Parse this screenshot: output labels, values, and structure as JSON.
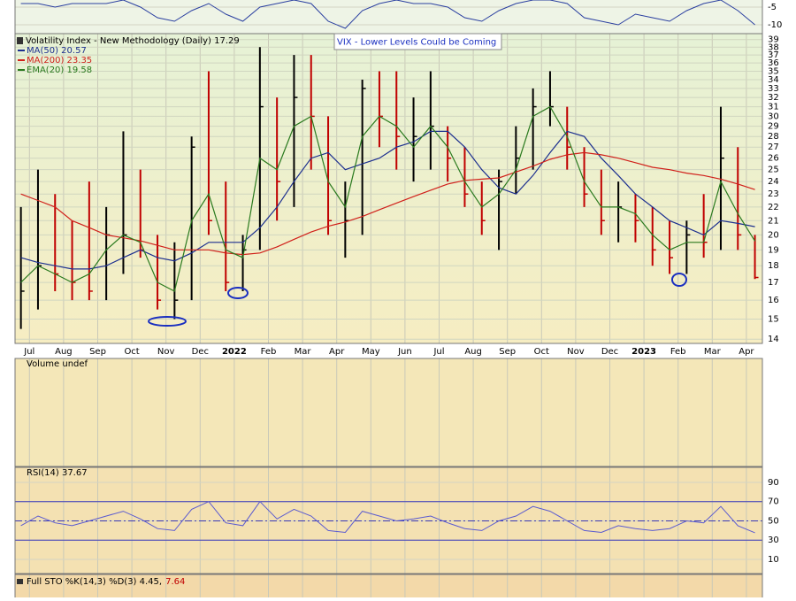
{
  "chart_data": [
    {
      "type": "line",
      "ylim": [
        -12.5,
        -3
      ],
      "yticks": [
        -5,
        -10
      ],
      "series": [
        {
          "color": "#2a3fa0",
          "values": [
            -4,
            -4,
            -5,
            -4,
            -4,
            -4,
            -3,
            -5,
            -8,
            -9,
            -6,
            -4,
            -7,
            -9,
            -5,
            -4,
            -3,
            -4,
            -9,
            -11,
            -6,
            -4,
            -3,
            -4,
            -4,
            -5,
            -8,
            -9,
            -6,
            -4,
            -3,
            -3,
            -4,
            -8,
            -9,
            -10,
            -7,
            -8,
            -9,
            -6,
            -4,
            -3,
            -6,
            -10
          ]
        }
      ]
    },
    {
      "type": "hlc",
      "title": "Volatility Index - New Methodology (Daily) 17.29",
      "log_scale": true,
      "grid": true,
      "ylim": [
        13.8,
        39.8
      ],
      "yticks": [
        14,
        15,
        16,
        17,
        18,
        19,
        20,
        21,
        22,
        23,
        24,
        25,
        26,
        27,
        28,
        29,
        30,
        31,
        32,
        33,
        34,
        35,
        36,
        37,
        38,
        39
      ],
      "annotation": "VIX - Lower Levels Could be Coming",
      "categories": [
        null,
        "Jul",
        null,
        "Aug",
        null,
        "Sep",
        null,
        "Oct",
        null,
        "Nov",
        null,
        "Dec",
        null,
        "2022",
        null,
        "Feb",
        null,
        "Mar",
        null,
        "Apr",
        null,
        "May",
        null,
        "Jun",
        null,
        "Jul",
        null,
        "Aug",
        null,
        "Sep",
        null,
        "Oct",
        null,
        "Nov",
        null,
        "Dec",
        null,
        "2023",
        null,
        "Feb",
        null,
        "Mar",
        null,
        "Apr"
      ],
      "high": [
        22,
        25,
        23,
        21,
        24,
        22,
        28.5,
        25,
        20,
        19.5,
        28,
        35,
        24,
        20,
        38,
        32,
        37,
        37,
        30,
        24,
        34,
        35,
        35,
        32,
        35,
        29,
        27,
        24,
        25,
        29,
        33,
        35,
        31,
        27,
        25,
        24,
        23,
        22,
        21,
        21,
        23,
        31,
        27,
        20
      ],
      "low": [
        14.5,
        15.5,
        16.5,
        16,
        16,
        16,
        17.5,
        18.5,
        15.5,
        15,
        16,
        20,
        16.5,
        16.5,
        19,
        21,
        22,
        25,
        20,
        18.5,
        20,
        27,
        25,
        24,
        25,
        24,
        22,
        20,
        19,
        23,
        25,
        29,
        25,
        22,
        20,
        19.5,
        19.5,
        18,
        17.5,
        17.5,
        18.5,
        19,
        19,
        17.2
      ],
      "close": [
        16.5,
        18,
        17.5,
        17,
        16.5,
        20,
        20,
        19,
        16,
        16,
        27,
        21,
        17,
        19,
        31,
        24,
        32,
        30,
        21,
        21,
        33,
        30,
        28,
        28,
        29,
        26,
        23,
        21,
        24,
        26,
        31,
        31,
        27,
        23,
        21,
        22,
        21,
        19,
        18.5,
        20,
        19.5,
        26,
        20,
        17.29
      ],
      "up_color": "#000000",
      "down_color": "#c00000",
      "series": [
        {
          "name": "MA(50) 20.57",
          "color": "#1c2f8f",
          "values": [
            18.5,
            18.2,
            18,
            17.8,
            17.8,
            18,
            18.5,
            19,
            18.5,
            18.3,
            18.8,
            19.5,
            19.5,
            19.5,
            20.5,
            22,
            24,
            26,
            26.5,
            25,
            25.5,
            26,
            27,
            27.5,
            28.5,
            28.5,
            27,
            25,
            23.5,
            23,
            24.5,
            26.5,
            28.5,
            28,
            26,
            24.5,
            23,
            22,
            21,
            20.5,
            20,
            21,
            20.8,
            20.57
          ]
        },
        {
          "name": "MA(200) 23.35",
          "color": "#d0201a",
          "values": [
            23,
            22.5,
            22,
            21,
            20.5,
            20,
            19.8,
            19.6,
            19.3,
            19,
            19,
            19,
            18.8,
            18.7,
            18.8,
            19.2,
            19.7,
            20.2,
            20.6,
            20.9,
            21.3,
            21.8,
            22.3,
            22.8,
            23.3,
            23.8,
            24.1,
            24.2,
            24.3,
            24.8,
            25.3,
            25.9,
            26.3,
            26.5,
            26.3,
            26,
            25.6,
            25.2,
            25,
            24.7,
            24.5,
            24.2,
            23.8,
            23.35
          ]
        },
        {
          "name": "EMA(20) 19.58",
          "color": "#2a7a1e",
          "values": [
            17,
            18,
            17.5,
            17,
            17.5,
            19,
            20,
            19.5,
            17,
            16.5,
            21,
            23,
            19,
            18.5,
            26,
            25,
            29,
            30,
            24,
            22,
            28,
            30,
            29,
            27,
            29,
            27,
            24,
            22,
            23,
            25,
            30,
            31,
            28,
            24,
            22,
            22,
            21.5,
            20,
            19,
            19.5,
            19.5,
            24,
            21.5,
            19.58
          ]
        }
      ]
    },
    {
      "type": "bar",
      "title": "Volume undef"
    },
    {
      "type": "line",
      "title": "RSI(14) 37.67",
      "ylim": [
        -4.7,
        105.6
      ],
      "yticks": [
        90,
        70,
        50,
        30,
        10
      ],
      "reference_lines": [
        30,
        50,
        70
      ],
      "series": [
        {
          "color": "#5a5ad0",
          "values": [
            45,
            55,
            48,
            45,
            50,
            55,
            60,
            52,
            42,
            40,
            62,
            70,
            48,
            45,
            70,
            52,
            62,
            55,
            40,
            38,
            60,
            55,
            50,
            52,
            55,
            48,
            42,
            40,
            50,
            55,
            65,
            60,
            50,
            40,
            38,
            45,
            42,
            40,
            42,
            50,
            48,
            65,
            45,
            37.67
          ]
        }
      ]
    },
    {
      "type": "line",
      "title_parts": [
        {
          "text": "Full STO %K(14,3) %D(3) 4.45,",
          "color": "#000000"
        },
        {
          "text": "7.64",
          "color": "#c00000"
        }
      ]
    }
  ]
}
